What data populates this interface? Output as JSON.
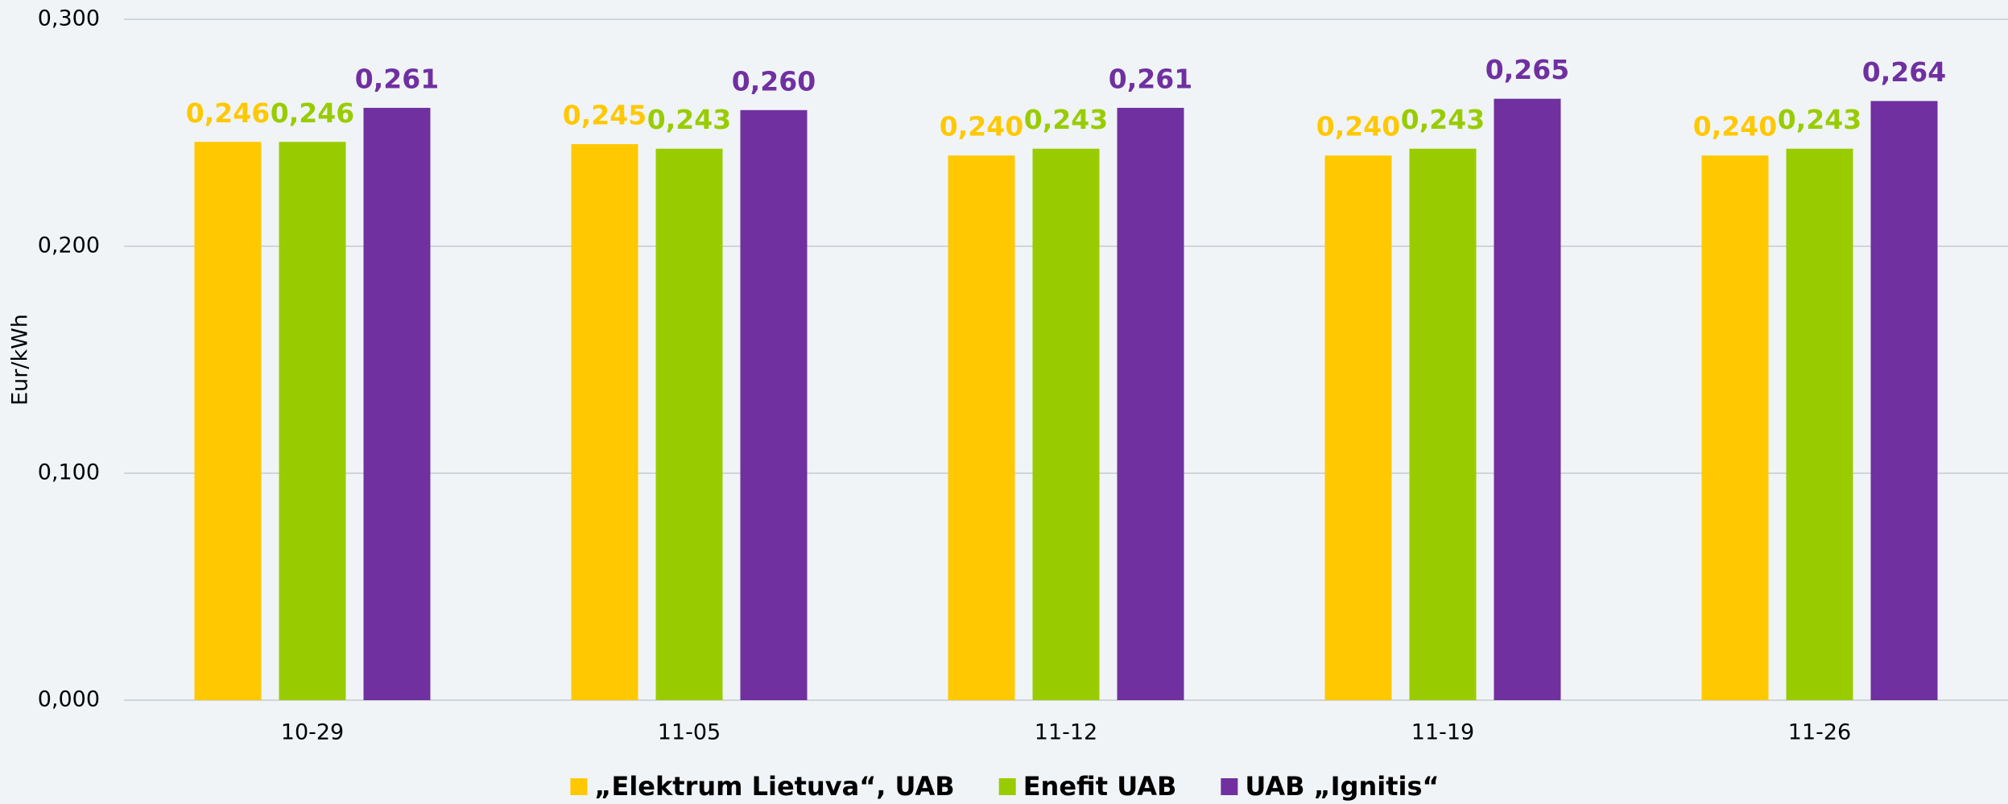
{
  "chart_data": {
    "type": "bar",
    "y_label": "Eur/kWh",
    "categories": [
      "10-29",
      "11-05",
      "11-12",
      "11-19",
      "11-26"
    ],
    "series": [
      {
        "name": "„Elektrum Lietuva“, UAB",
        "color": "#ffc800",
        "values": [
          0.246,
          0.245,
          0.24,
          0.24,
          0.24
        ],
        "value_labels": [
          "0,246",
          "0,245",
          "0,240",
          "0,240",
          "0,240"
        ]
      },
      {
        "name": "Enefit UAB",
        "color": "#99cc00",
        "values": [
          0.246,
          0.243,
          0.243,
          0.243,
          0.243
        ],
        "value_labels": [
          "0,246",
          "0,243",
          "0,243",
          "0,243",
          "0,243"
        ]
      },
      {
        "name": "UAB „Ignitis“",
        "color": "#7030a0",
        "values": [
          0.261,
          0.26,
          0.261,
          0.265,
          0.264
        ],
        "value_labels": [
          "0,261",
          "0,260",
          "0,261",
          "0,265",
          "0,264"
        ]
      }
    ],
    "ylim": [
      0,
      0.3
    ],
    "yticks": [
      {
        "value": 0,
        "label": "0,000"
      },
      {
        "value": 0.1,
        "label": "0,100"
      },
      {
        "value": 0.2,
        "label": "0,200"
      },
      {
        "value": 0.3,
        "label": "0,300"
      }
    ],
    "grid": true,
    "legend": "bottom"
  }
}
